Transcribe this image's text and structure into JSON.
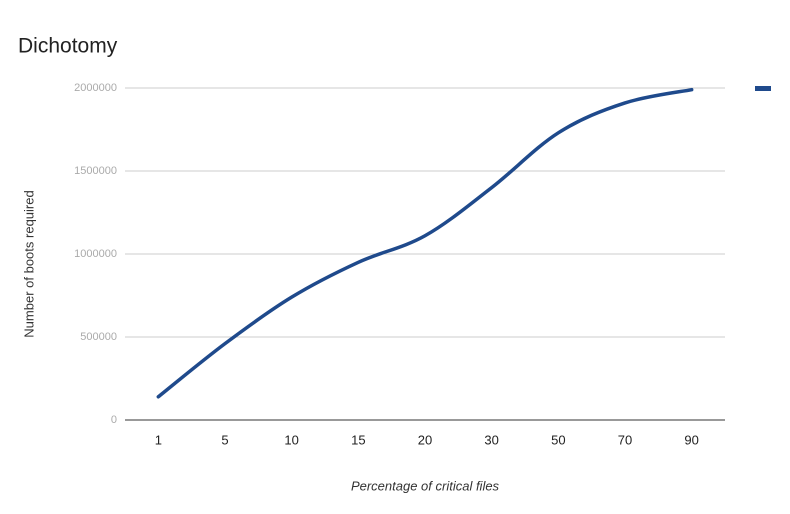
{
  "chart_data": {
    "type": "line",
    "title": "Dichotomy",
    "x_label": "Percentage of critical files",
    "y_label": "Number of boots required",
    "categories": [
      "1",
      "5",
      "10",
      "15",
      "20",
      "30",
      "50",
      "70",
      "90"
    ],
    "series": [
      {
        "color": "#1f4a8c",
        "values": [
          140000,
          460000,
          740000,
          950000,
          1110000,
          1400000,
          1730000,
          1910000,
          1990000
        ]
      }
    ],
    "ylim": [
      0,
      2000000
    ],
    "yticks": [
      0,
      500000,
      1000000,
      1500000,
      2000000
    ],
    "grid": true,
    "smooth": true,
    "legend": "right"
  }
}
